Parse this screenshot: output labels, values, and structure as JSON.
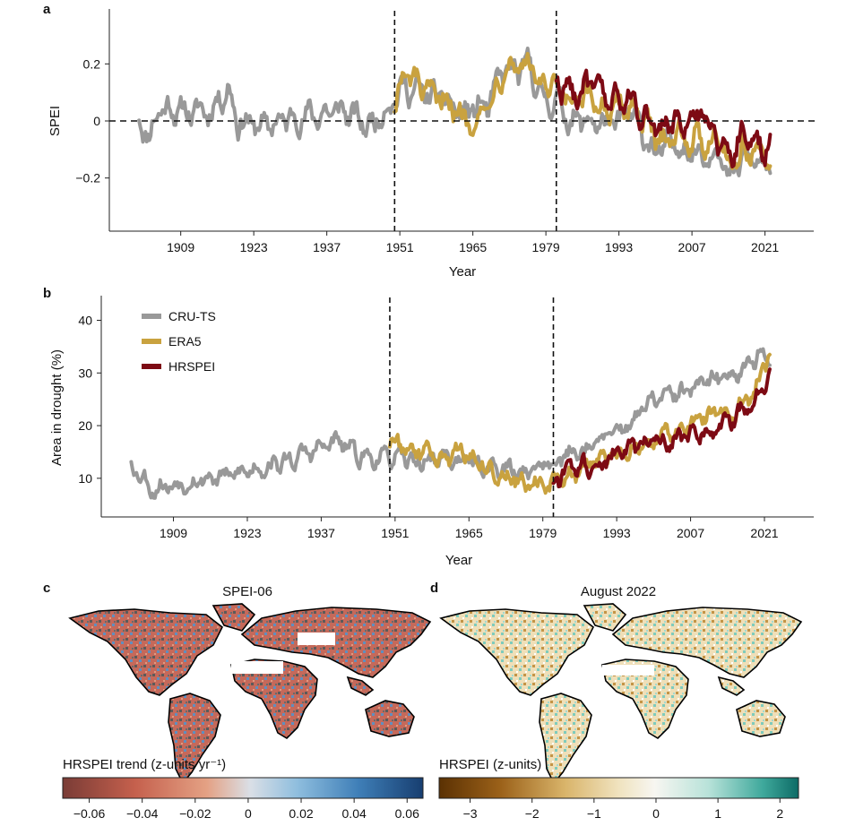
{
  "colors": {
    "cru": "#999999",
    "era5": "#c9a23f",
    "hrspei": "#7d0a14",
    "trend_neg": "#b0473b",
    "trend_mid": "#e6e6e6",
    "trend_pos": "#1f4e85",
    "drought_neg": "#6b3a05",
    "drought_pos": "#1a7f78"
  },
  "chart_data": [
    {
      "panel": "a",
      "type": "line",
      "ylabel": "SPEI",
      "xlabel": "Year",
      "x_ticks": [
        1909,
        1923,
        1937,
        1951,
        1965,
        1979,
        1993,
        2007,
        2021
      ],
      "y_ticks": [
        0.2,
        0,
        -0.2
      ],
      "y_tick_labels": [
        "0.2",
        "0",
        "−0.2"
      ],
      "xlim": [
        1896,
        2030
      ],
      "ylim": [
        -0.38,
        0.38
      ],
      "reference_lines": {
        "horizontal": 0,
        "vertical": [
          1950,
          1981
        ]
      },
      "series": [
        {
          "name": "CRU-TS",
          "anchors": [
            [
              1901,
              0.0
            ],
            [
              1903,
              -0.05
            ],
            [
              1905,
              0.05
            ],
            [
              1910,
              0.03
            ],
            [
              1915,
              0.04
            ],
            [
              1918,
              0.12
            ],
            [
              1920,
              0.0
            ],
            [
              1925,
              -0.02
            ],
            [
              1930,
              0.01
            ],
            [
              1935,
              0.02
            ],
            [
              1940,
              0.04
            ],
            [
              1945,
              -0.02
            ],
            [
              1948,
              0.04
            ],
            [
              1950,
              0.08
            ],
            [
              1952,
              0.12
            ],
            [
              1955,
              0.1
            ],
            [
              1958,
              0.08
            ],
            [
              1960,
              0.07
            ],
            [
              1963,
              0.02
            ],
            [
              1966,
              0.05
            ],
            [
              1968,
              0.05
            ],
            [
              1971,
              0.18
            ],
            [
              1974,
              0.17
            ],
            [
              1976,
              0.2
            ],
            [
              1978,
              0.08
            ],
            [
              1981,
              0.07
            ],
            [
              1984,
              0.0
            ],
            [
              1988,
              0.0
            ],
            [
              1992,
              -0.02
            ],
            [
              1995,
              0.03
            ],
            [
              1998,
              -0.05
            ],
            [
              2000,
              -0.12
            ],
            [
              2003,
              -0.08
            ],
            [
              2007,
              -0.1
            ],
            [
              2010,
              -0.12
            ],
            [
              2012,
              -0.08
            ],
            [
              2014,
              -0.22
            ],
            [
              2017,
              -0.12
            ],
            [
              2020,
              -0.15
            ],
            [
              2022,
              -0.18
            ]
          ]
        },
        {
          "name": "ERA5",
          "anchors": [
            [
              1950,
              0.06
            ],
            [
              1952,
              0.16
            ],
            [
              1955,
              0.12
            ],
            [
              1958,
              0.06
            ],
            [
              1960,
              0.09
            ],
            [
              1963,
              0.0
            ],
            [
              1966,
              0.02
            ],
            [
              1968,
              0.06
            ],
            [
              1971,
              0.2
            ],
            [
              1974,
              0.2
            ],
            [
              1976,
              0.2
            ],
            [
              1978,
              0.12
            ],
            [
              1981,
              0.1
            ],
            [
              1984,
              0.06
            ],
            [
              1988,
              0.07
            ],
            [
              1992,
              0.03
            ],
            [
              1995,
              0.06
            ],
            [
              1998,
              0.0
            ],
            [
              2000,
              -0.08
            ],
            [
              2003,
              -0.04
            ],
            [
              2007,
              -0.06
            ],
            [
              2010,
              -0.08
            ],
            [
              2012,
              -0.02
            ],
            [
              2014,
              -0.15
            ],
            [
              2017,
              -0.1
            ],
            [
              2020,
              -0.1
            ],
            [
              2022,
              -0.2
            ]
          ]
        },
        {
          "name": "HRSPEI",
          "anchors": [
            [
              1981,
              0.14
            ],
            [
              1984,
              0.1
            ],
            [
              1988,
              0.12
            ],
            [
              1992,
              0.06
            ],
            [
              1995,
              0.08
            ],
            [
              1998,
              0.02
            ],
            [
              2000,
              -0.04
            ],
            [
              2003,
              0.0
            ],
            [
              2007,
              -0.02
            ],
            [
              2009,
              0.06
            ],
            [
              2011,
              -0.04
            ],
            [
              2014,
              -0.12
            ],
            [
              2017,
              -0.04
            ],
            [
              2020,
              -0.08
            ],
            [
              2022,
              -0.1
            ]
          ]
        }
      ]
    },
    {
      "panel": "b",
      "type": "line",
      "ylabel": "Area in drought (%)",
      "xlabel": "Year",
      "x_ticks": [
        1909,
        1923,
        1937,
        1951,
        1965,
        1979,
        1993,
        2007,
        2021
      ],
      "y_ticks": [
        10,
        20,
        30,
        40
      ],
      "y_tick_labels": [
        "10",
        "20",
        "30",
        "40"
      ],
      "xlim": [
        1896,
        2030
      ],
      "ylim": [
        3,
        44
      ],
      "reference_lines": {
        "vertical": [
          1950,
          1981
        ]
      },
      "legend": {
        "position": "top-left"
      },
      "series": [
        {
          "name": "CRU-TS",
          "anchors": [
            [
              1901,
              13
            ],
            [
              1905,
              8
            ],
            [
              1910,
              9
            ],
            [
              1915,
              10
            ],
            [
              1920,
              10.5
            ],
            [
              1925,
              12
            ],
            [
              1930,
              13
            ],
            [
              1935,
              15
            ],
            [
              1940,
              17
            ],
            [
              1945,
              14
            ],
            [
              1950,
              14
            ],
            [
              1955,
              13
            ],
            [
              1960,
              14
            ],
            [
              1965,
              13
            ],
            [
              1970,
              12
            ],
            [
              1975,
              11
            ],
            [
              1980,
              13
            ],
            [
              1985,
              15
            ],
            [
              1990,
              17
            ],
            [
              1995,
              20
            ],
            [
              2000,
              25
            ],
            [
              2005,
              26
            ],
            [
              2010,
              28
            ],
            [
              2015,
              30
            ],
            [
              2020,
              33
            ],
            [
              2022,
              32
            ]
          ]
        },
        {
          "name": "ERA5",
          "anchors": [
            [
              1950,
              17
            ],
            [
              1955,
              15
            ],
            [
              1960,
              14
            ],
            [
              1965,
              15
            ],
            [
              1970,
              11
            ],
            [
              1975,
              9
            ],
            [
              1980,
              8
            ],
            [
              1985,
              11
            ],
            [
              1990,
              14
            ],
            [
              1995,
              15
            ],
            [
              2000,
              18
            ],
            [
              2005,
              19
            ],
            [
              2010,
              22
            ],
            [
              2015,
              22
            ],
            [
              2020,
              28
            ],
            [
              2022,
              34
            ]
          ]
        },
        {
          "name": "HRSPEI",
          "anchors": [
            [
              1981,
              9
            ],
            [
              1985,
              12
            ],
            [
              1990,
              13
            ],
            [
              1995,
              15
            ],
            [
              2000,
              17
            ],
            [
              2005,
              18
            ],
            [
              2010,
              19
            ],
            [
              2015,
              21
            ],
            [
              2020,
              26
            ],
            [
              2022,
              29
            ]
          ]
        }
      ]
    },
    {
      "panel": "c",
      "type": "heatmap",
      "map_title": "SPEI-06",
      "colorbar_label": "HRSPEI trend (z-units yr⁻¹)",
      "colorbar_ticks": [
        -0.06,
        -0.04,
        -0.02,
        0,
        0.02,
        0.04,
        0.06
      ],
      "colorbar_tick_labels": [
        "−0.06",
        "−0.04",
        "−0.02",
        "0",
        "0.02",
        "0.04",
        "0.06"
      ],
      "vmin": -0.07,
      "vmax": 0.066
    },
    {
      "panel": "d",
      "type": "heatmap",
      "map_title": "August 2022",
      "colorbar_label": "HRSPEI (z-units)",
      "colorbar_ticks": [
        -3,
        -2,
        -1,
        0,
        1,
        2
      ],
      "colorbar_tick_labels": [
        "−3",
        "−2",
        "−1",
        "0",
        "1",
        "2"
      ],
      "vmin": -3.5,
      "vmax": 2.3
    }
  ]
}
